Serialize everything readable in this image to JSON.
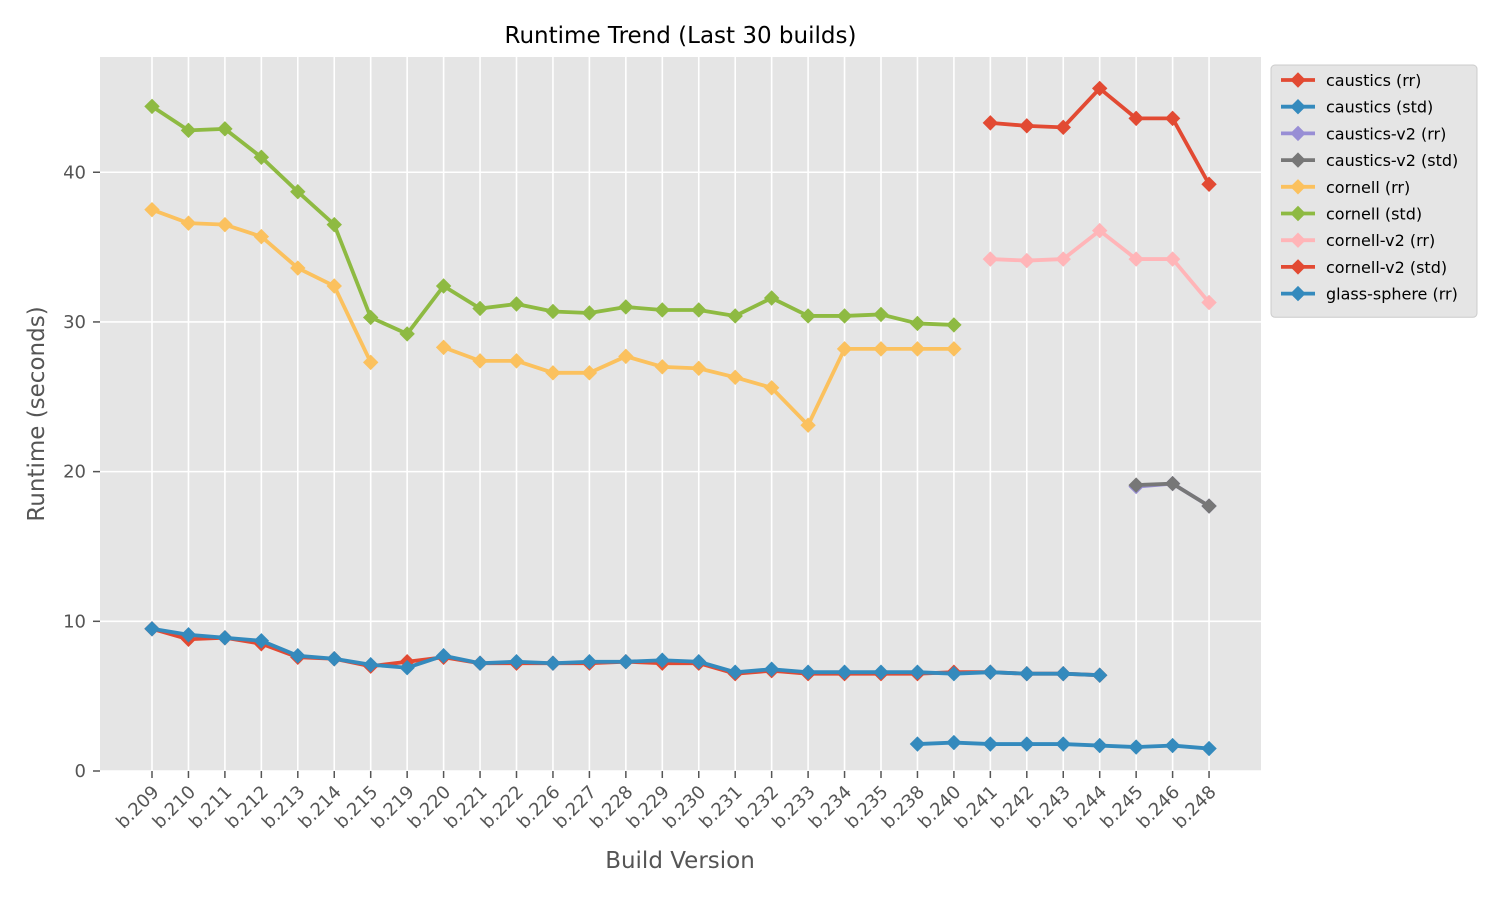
{
  "chart_data": {
    "type": "line",
    "title": "Runtime Trend (Last 30 builds)",
    "xlabel": "Build Version",
    "ylabel": "Runtime (seconds)",
    "ylim": [
      0,
      47.7
    ],
    "yticks": [
      0,
      10,
      20,
      30,
      40
    ],
    "grid": true,
    "legend_position": "outside top-right",
    "marker": "diamond",
    "categories": [
      "b.209",
      "b.210",
      "b.211",
      "b.212",
      "b.213",
      "b.214",
      "b.215",
      "b.219",
      "b.220",
      "b.221",
      "b.222",
      "b.226",
      "b.227",
      "b.228",
      "b.229",
      "b.230",
      "b.231",
      "b.232",
      "b.233",
      "b.234",
      "b.235",
      "b.238",
      "b.240",
      "b.241",
      "b.242",
      "b.243",
      "b.244",
      "b.245",
      "b.246",
      "b.248"
    ],
    "series": [
      {
        "name": "caustics (rr)",
        "color": "#E24A33",
        "values": [
          9.5,
          8.8,
          8.9,
          8.5,
          7.6,
          7.5,
          7.0,
          7.3,
          7.6,
          7.2,
          7.2,
          7.2,
          7.2,
          7.3,
          7.2,
          7.2,
          6.5,
          6.7,
          6.5,
          6.5,
          6.5,
          6.5,
          6.6,
          6.6,
          6.5,
          6.5,
          6.4,
          null,
          null,
          null
        ]
      },
      {
        "name": "caustics (std)",
        "color": "#348ABD",
        "values": [
          9.5,
          9.1,
          8.9,
          8.7,
          7.7,
          7.5,
          7.1,
          6.9,
          7.7,
          7.2,
          7.3,
          7.2,
          7.3,
          7.3,
          7.4,
          7.3,
          6.6,
          6.8,
          6.6,
          6.6,
          6.6,
          6.6,
          6.5,
          6.6,
          6.5,
          6.5,
          6.4,
          null,
          null,
          null
        ]
      },
      {
        "name": "caustics-v2 (rr)",
        "color": "#988ED5",
        "values": [
          null,
          null,
          null,
          null,
          null,
          null,
          null,
          null,
          null,
          null,
          null,
          null,
          null,
          null,
          null,
          null,
          null,
          null,
          null,
          null,
          null,
          null,
          null,
          null,
          null,
          null,
          null,
          19.0,
          19.2,
          17.7
        ]
      },
      {
        "name": "caustics-v2 (std)",
        "color": "#777777",
        "values": [
          null,
          null,
          null,
          null,
          null,
          null,
          null,
          null,
          null,
          null,
          null,
          null,
          null,
          null,
          null,
          null,
          null,
          null,
          null,
          null,
          null,
          null,
          null,
          null,
          null,
          null,
          null,
          19.1,
          19.2,
          17.7
        ]
      },
      {
        "name": "cornell (rr)",
        "color": "#FBC15E",
        "values": [
          37.5,
          36.6,
          36.5,
          35.7,
          33.6,
          32.4,
          27.3,
          null,
          28.3,
          27.4,
          27.4,
          26.6,
          26.6,
          27.7,
          27.0,
          26.9,
          26.3,
          25.6,
          23.1,
          28.2,
          28.2,
          28.2,
          28.2,
          null,
          null,
          null,
          null,
          null,
          null,
          null
        ]
      },
      {
        "name": "cornell (std)",
        "color": "#8EBA42",
        "values": [
          44.4,
          42.8,
          42.9,
          41.0,
          38.7,
          36.5,
          30.3,
          29.2,
          32.4,
          30.9,
          31.2,
          30.7,
          30.6,
          31.0,
          30.8,
          30.8,
          30.4,
          31.6,
          30.4,
          30.4,
          30.5,
          29.9,
          29.8,
          null,
          null,
          null,
          null,
          null,
          null,
          null
        ]
      },
      {
        "name": "cornell-v2 (rr)",
        "color": "#FFB5B8",
        "values": [
          null,
          null,
          null,
          null,
          null,
          null,
          null,
          null,
          null,
          null,
          null,
          null,
          null,
          null,
          null,
          null,
          null,
          null,
          null,
          null,
          null,
          null,
          null,
          34.2,
          34.1,
          34.2,
          36.1,
          34.2,
          34.2,
          31.3
        ]
      },
      {
        "name": "cornell-v2 (std)",
        "color": "#E24A33",
        "values": [
          null,
          null,
          null,
          null,
          null,
          null,
          null,
          null,
          null,
          null,
          null,
          null,
          null,
          null,
          null,
          null,
          null,
          null,
          null,
          null,
          null,
          null,
          null,
          43.3,
          43.1,
          43.0,
          45.6,
          43.6,
          43.6,
          39.2
        ]
      },
      {
        "name": "glass-sphere (rr)",
        "color": "#348ABD",
        "values": [
          null,
          null,
          null,
          null,
          null,
          null,
          null,
          null,
          null,
          null,
          null,
          null,
          null,
          null,
          null,
          null,
          null,
          null,
          null,
          null,
          null,
          1.8,
          1.9,
          1.8,
          1.8,
          1.8,
          1.7,
          1.6,
          1.7,
          1.5
        ]
      }
    ]
  }
}
